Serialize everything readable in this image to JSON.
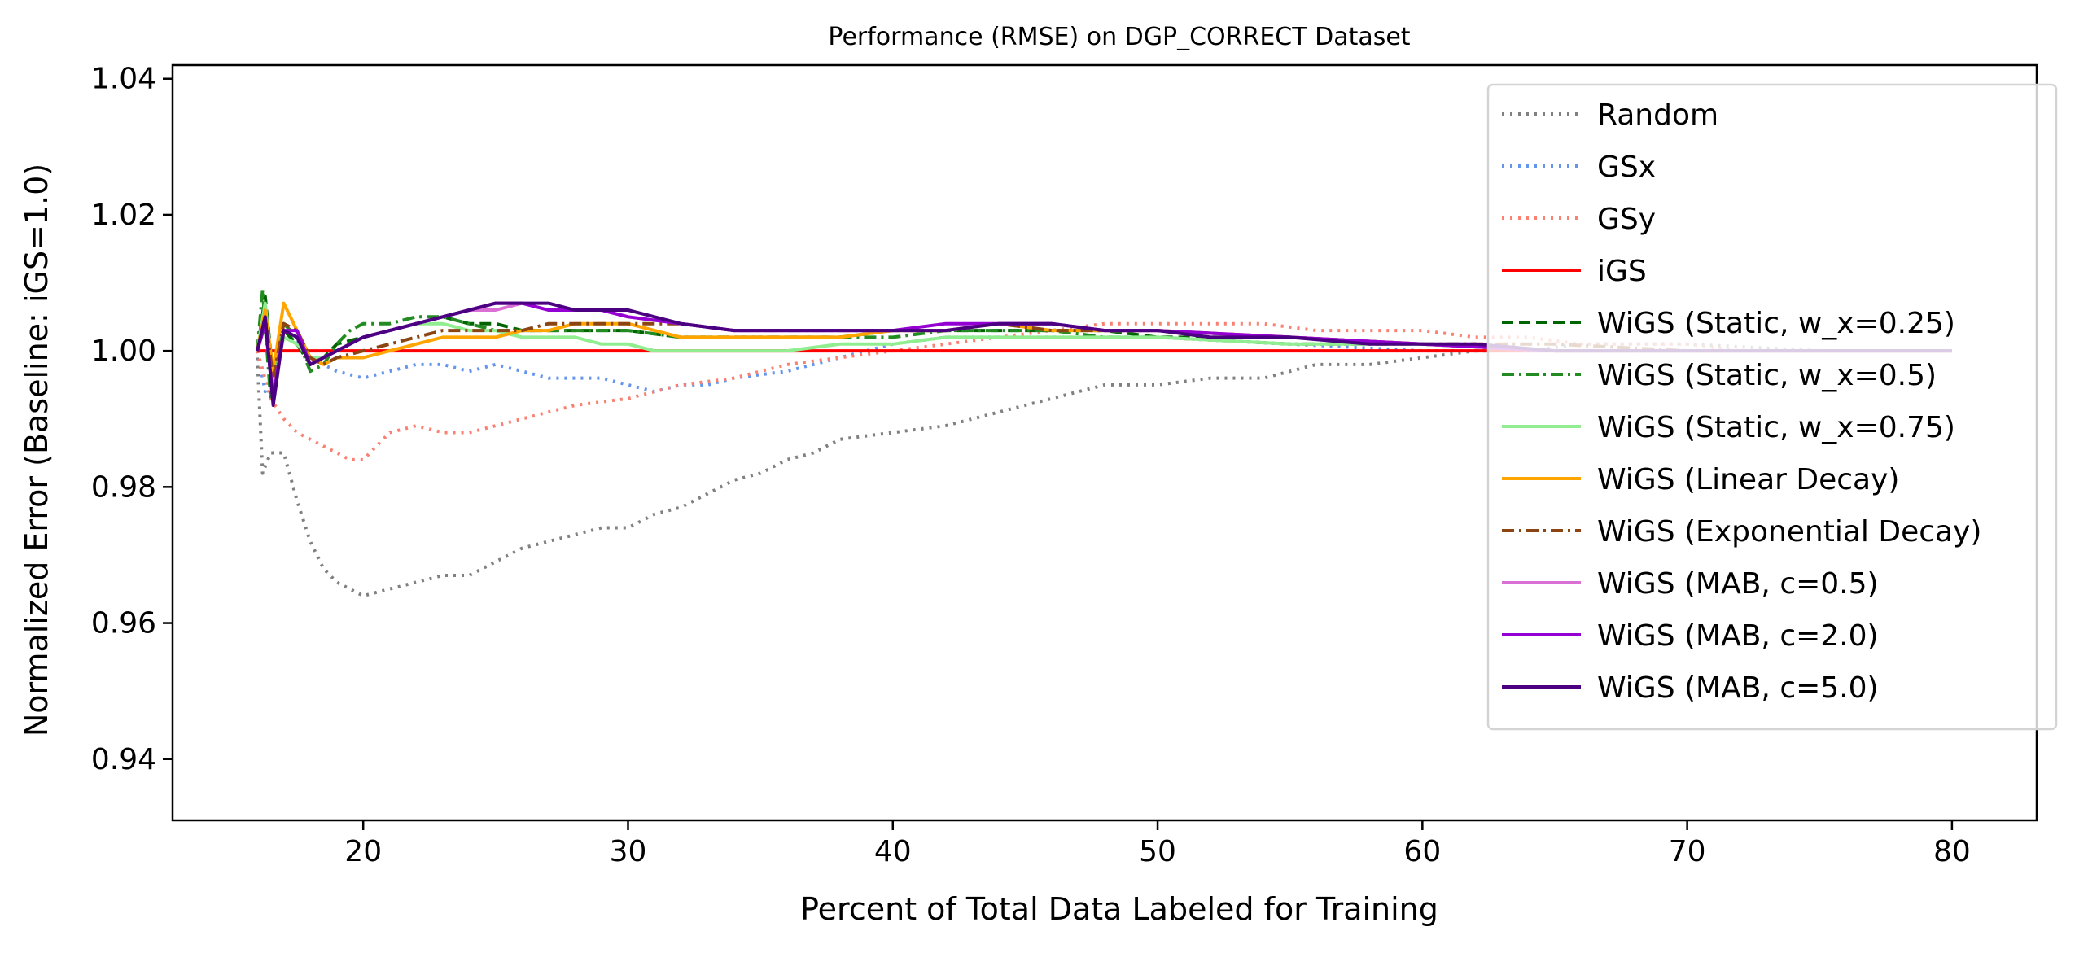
{
  "chart_data": {
    "type": "line",
    "title": "Performance (RMSE) on DGP_CORRECT Dataset",
    "xlabel": "Percent of Total Data Labeled for Training",
    "ylabel": "Normalized Error (Baseline: iGS=1.0)",
    "xlim": [
      12.8,
      83.2
    ],
    "ylim": [
      0.931,
      1.042
    ],
    "xticks": [
      20,
      30,
      40,
      50,
      60,
      70,
      80
    ],
    "xtick_labels": [
      "20",
      "30",
      "40",
      "50",
      "60",
      "70",
      "80"
    ],
    "yticks": [
      0.94,
      0.96,
      0.98,
      1.0,
      1.02,
      1.04
    ],
    "ytick_labels": [
      "0.94",
      "0.96",
      "0.98",
      "1.00",
      "1.02",
      "1.04"
    ],
    "grid": false,
    "legend_position": "top-right",
    "series": [
      {
        "name": "Random",
        "color": "#808080",
        "style": "dotted",
        "x": [
          16.0,
          16.2,
          16.5,
          17.0,
          17.5,
          18.0,
          18.5,
          19.0,
          20.0,
          21.0,
          22.0,
          23.0,
          24.0,
          25.0,
          26.0,
          27.0,
          28.0,
          29.0,
          30.0,
          31.0,
          32.0,
          33.0,
          34.0,
          35.0,
          36.0,
          37.0,
          38.0,
          40.0,
          42.0,
          44.0,
          46.0,
          48.0,
          50.0,
          52.0,
          54.0,
          56.0,
          58.0,
          60.0,
          62.0,
          64.0,
          66.0,
          70.0,
          75.0,
          80.0
        ],
        "y": [
          0.999,
          0.982,
          0.985,
          0.985,
          0.978,
          0.972,
          0.968,
          0.966,
          0.964,
          0.965,
          0.966,
          0.967,
          0.967,
          0.969,
          0.971,
          0.972,
          0.973,
          0.974,
          0.974,
          0.976,
          0.977,
          0.979,
          0.981,
          0.982,
          0.984,
          0.985,
          0.987,
          0.988,
          0.989,
          0.991,
          0.993,
          0.995,
          0.995,
          0.996,
          0.996,
          0.998,
          0.998,
          0.999,
          1.0,
          1.0,
          1.001,
          1.001,
          1.0,
          1.0
        ]
      },
      {
        "name": "GSx",
        "color": "#6495ED",
        "style": "dotted",
        "x": [
          16.0,
          16.3,
          17.0,
          18.0,
          19.0,
          20.0,
          21.0,
          22.0,
          23.0,
          24.0,
          25.0,
          26.0,
          27.0,
          28.0,
          29.0,
          30.0,
          31.0,
          32.0,
          33.0,
          34.0,
          36.0,
          38.0,
          40.0,
          42.0,
          44.0,
          46.0,
          48.0,
          50.0,
          55.0,
          60.0,
          65.0,
          70.0,
          75.0,
          80.0
        ],
        "y": [
          1.0,
          0.994,
          1.003,
          0.999,
          0.997,
          0.996,
          0.997,
          0.998,
          0.998,
          0.997,
          0.998,
          0.997,
          0.996,
          0.996,
          0.996,
          0.995,
          0.994,
          0.995,
          0.995,
          0.996,
          0.997,
          0.999,
          1.001,
          1.002,
          1.002,
          1.002,
          1.002,
          1.002,
          1.001,
          1.0,
          1.0,
          1.0,
          1.0,
          1.0
        ]
      },
      {
        "name": "GSy",
        "color": "#FA8072",
        "style": "dotted",
        "x": [
          16.0,
          16.5,
          17.0,
          17.5,
          18.0,
          18.5,
          19.0,
          19.5,
          20.0,
          21.0,
          22.0,
          23.0,
          24.0,
          25.0,
          26.0,
          28.0,
          30.0,
          32.0,
          34.0,
          36.0,
          38.0,
          40.0,
          42.0,
          44.0,
          46.0,
          48.0,
          50.0,
          52.0,
          54.0,
          56.0,
          58.0,
          60.0,
          62.0,
          64.0,
          66.0,
          68.0,
          70.0,
          72.0,
          74.0,
          76.0,
          78.0,
          80.0
        ],
        "y": [
          1.0,
          0.993,
          0.99,
          0.988,
          0.987,
          0.986,
          0.985,
          0.984,
          0.984,
          0.988,
          0.989,
          0.988,
          0.988,
          0.989,
          0.99,
          0.992,
          0.993,
          0.995,
          0.996,
          0.998,
          0.999,
          1.0,
          1.001,
          1.002,
          1.003,
          1.004,
          1.004,
          1.004,
          1.004,
          1.003,
          1.003,
          1.003,
          1.002,
          1.002,
          1.001,
          1.001,
          1.001,
          1.0,
          1.0,
          1.0,
          1.0,
          1.0
        ]
      },
      {
        "name": "iGS",
        "color": "#FF0000",
        "style": "solid",
        "x": [
          16.0,
          80.0
        ],
        "y": [
          1.0,
          1.0
        ]
      },
      {
        "name": "WiGS (Static, w_x=0.25)",
        "color": "#006400",
        "style": "dashed",
        "x": [
          16.0,
          16.3,
          16.6,
          17.0,
          17.5,
          18.0,
          18.5,
          19.0,
          20.0,
          21.0,
          22.0,
          23.0,
          24.0,
          25.0,
          26.0,
          27.0,
          28.0,
          30.0,
          32.0,
          34.0,
          36.0,
          38.0,
          40.0,
          42.0,
          44.0,
          46.0,
          48.0,
          50.0,
          55.0,
          60.0,
          65.0,
          70.0,
          75.0,
          80.0
        ],
        "y": [
          1.0,
          1.008,
          0.996,
          1.003,
          1.001,
          0.998,
          0.999,
          1.001,
          1.002,
          1.003,
          1.004,
          1.005,
          1.004,
          1.004,
          1.003,
          1.003,
          1.003,
          1.003,
          1.002,
          1.002,
          1.002,
          1.002,
          1.003,
          1.003,
          1.003,
          1.003,
          1.003,
          1.002,
          1.002,
          1.001,
          1.0,
          1.0,
          1.0,
          1.0
        ]
      },
      {
        "name": "WiGS (Static, w_x=0.5)",
        "color": "#228B22",
        "style": "dashdot",
        "x": [
          16.0,
          16.2,
          16.5,
          17.0,
          17.5,
          18.0,
          18.5,
          19.0,
          19.5,
          20.0,
          21.0,
          22.0,
          23.0,
          24.0,
          25.0,
          26.0,
          28.0,
          30.0,
          32.0,
          34.0,
          36.0,
          38.0,
          40.0,
          42.0,
          44.0,
          46.0,
          48.0,
          50.0,
          55.0,
          60.0,
          65.0,
          70.0,
          75.0,
          80.0
        ],
        "y": [
          1.0,
          1.009,
          0.993,
          1.004,
          1.002,
          0.997,
          0.998,
          1.001,
          1.003,
          1.004,
          1.004,
          1.005,
          1.005,
          1.004,
          1.003,
          1.003,
          1.003,
          1.003,
          1.002,
          1.002,
          1.002,
          1.002,
          1.002,
          1.003,
          1.003,
          1.003,
          1.002,
          1.002,
          1.001,
          1.001,
          1.0,
          1.0,
          1.0,
          1.0
        ]
      },
      {
        "name": "WiGS (Static, w_x=0.75)",
        "color": "#90EE90",
        "style": "solid",
        "x": [
          16.0,
          16.3,
          16.6,
          17.0,
          17.5,
          18.0,
          18.5,
          19.0,
          20.0,
          21.0,
          22.0,
          23.0,
          24.0,
          25.0,
          26.0,
          27.0,
          28.0,
          29.0,
          30.0,
          31.0,
          32.0,
          34.0,
          36.0,
          38.0,
          40.0,
          42.0,
          44.0,
          46.0,
          48.0,
          50.0,
          55.0,
          60.0,
          65.0,
          70.0,
          75.0,
          80.0
        ],
        "y": [
          1.0,
          1.007,
          0.995,
          1.002,
          1.001,
          0.999,
          0.999,
          1.0,
          1.002,
          1.003,
          1.004,
          1.004,
          1.003,
          1.003,
          1.002,
          1.002,
          1.002,
          1.001,
          1.001,
          1.0,
          1.0,
          1.0,
          1.0,
          1.001,
          1.001,
          1.002,
          1.002,
          1.002,
          1.002,
          1.002,
          1.001,
          1.001,
          1.0,
          1.0,
          1.0,
          1.0
        ]
      },
      {
        "name": "WiGS (Linear Decay)",
        "color": "#FFA500",
        "style": "solid",
        "x": [
          16.0,
          16.3,
          16.6,
          17.0,
          17.5,
          18.0,
          18.5,
          19.0,
          19.5,
          20.0,
          21.0,
          22.0,
          23.0,
          24.0,
          25.0,
          26.0,
          27.0,
          28.0,
          29.0,
          30.0,
          31.0,
          32.0,
          34.0,
          36.0,
          38.0,
          40.0,
          42.0,
          44.0,
          46.0,
          48.0,
          50.0,
          55.0,
          60.0,
          65.0,
          70.0,
          75.0,
          80.0
        ],
        "y": [
          1.0,
          1.006,
          0.997,
          1.007,
          1.003,
          0.999,
          0.998,
          0.999,
          0.999,
          0.999,
          1.0,
          1.001,
          1.002,
          1.002,
          1.002,
          1.003,
          1.003,
          1.004,
          1.004,
          1.004,
          1.003,
          1.002,
          1.002,
          1.002,
          1.002,
          1.003,
          1.003,
          1.004,
          1.003,
          1.003,
          1.003,
          1.002,
          1.001,
          1.0,
          1.0,
          1.0,
          1.0
        ]
      },
      {
        "name": "WiGS (Exponential Decay)",
        "color": "#8B4513",
        "style": "dashdot",
        "x": [
          16.0,
          16.3,
          16.6,
          17.0,
          17.5,
          18.0,
          18.5,
          19.0,
          20.0,
          21.0,
          22.0,
          23.0,
          24.0,
          25.0,
          26.0,
          27.0,
          28.0,
          29.0,
          30.0,
          32.0,
          34.0,
          36.0,
          38.0,
          40.0,
          42.0,
          44.0,
          46.0,
          48.0,
          50.0,
          55.0,
          60.0,
          65.0,
          70.0,
          75.0,
          80.0
        ],
        "y": [
          1.0,
          1.005,
          0.996,
          1.004,
          1.003,
          0.999,
          0.998,
          0.999,
          1.0,
          1.001,
          1.002,
          1.003,
          1.003,
          1.003,
          1.003,
          1.004,
          1.004,
          1.004,
          1.004,
          1.004,
          1.003,
          1.003,
          1.003,
          1.003,
          1.003,
          1.004,
          1.003,
          1.003,
          1.003,
          1.002,
          1.001,
          1.001,
          1.0,
          1.0,
          1.0
        ]
      },
      {
        "name": "WiGS (MAB, c=0.5)",
        "color": "#DA70D6",
        "style": "solid",
        "x": [
          16.0,
          16.3,
          16.6,
          17.0,
          17.5,
          18.0,
          18.5,
          19.0,
          20.0,
          21.0,
          22.0,
          23.0,
          24.0,
          25.0,
          26.0,
          27.0,
          28.0,
          29.0,
          30.0,
          32.0,
          34.0,
          36.0,
          38.0,
          40.0,
          42.0,
          44.0,
          46.0,
          48.0,
          50.0,
          55.0,
          60.0,
          65.0,
          70.0,
          75.0,
          80.0
        ],
        "y": [
          1.0,
          1.004,
          0.993,
          1.003,
          1.002,
          0.998,
          0.999,
          1.0,
          1.002,
          1.003,
          1.004,
          1.005,
          1.006,
          1.006,
          1.007,
          1.006,
          1.006,
          1.006,
          1.005,
          1.004,
          1.003,
          1.003,
          1.003,
          1.003,
          1.003,
          1.004,
          1.004,
          1.003,
          1.003,
          1.002,
          1.001,
          1.0,
          1.0,
          1.0,
          1.0
        ]
      },
      {
        "name": "WiGS (MAB, c=2.0)",
        "color": "#9400D3",
        "style": "solid",
        "x": [
          16.0,
          16.3,
          16.6,
          17.0,
          17.5,
          18.0,
          18.5,
          19.0,
          20.0,
          21.0,
          22.0,
          23.0,
          24.0,
          25.0,
          26.0,
          27.0,
          28.0,
          29.0,
          30.0,
          32.0,
          34.0,
          36.0,
          38.0,
          40.0,
          42.0,
          44.0,
          46.0,
          48.0,
          50.0,
          55.0,
          60.0,
          65.0,
          70.0,
          75.0,
          80.0
        ],
        "y": [
          1.0,
          1.004,
          0.993,
          1.003,
          1.003,
          0.998,
          0.999,
          1.0,
          1.002,
          1.003,
          1.004,
          1.005,
          1.006,
          1.007,
          1.007,
          1.006,
          1.006,
          1.006,
          1.005,
          1.004,
          1.003,
          1.003,
          1.003,
          1.003,
          1.004,
          1.004,
          1.004,
          1.003,
          1.003,
          1.002,
          1.001,
          1.0,
          1.0,
          1.0,
          1.0
        ]
      },
      {
        "name": "WiGS (MAB, c=5.0)",
        "color": "#4B0082",
        "style": "solid",
        "x": [
          16.0,
          16.3,
          16.6,
          17.0,
          17.5,
          18.0,
          18.5,
          19.0,
          20.0,
          21.0,
          22.0,
          23.0,
          24.0,
          25.0,
          26.0,
          27.0,
          28.0,
          29.0,
          30.0,
          31.0,
          32.0,
          34.0,
          36.0,
          38.0,
          40.0,
          42.0,
          44.0,
          46.0,
          48.0,
          50.0,
          52.0,
          55.0,
          58.0,
          60.0,
          62.0,
          65.0,
          70.0,
          75.0,
          80.0
        ],
        "y": [
          1.0,
          1.005,
          0.992,
          1.003,
          1.002,
          0.998,
          0.999,
          1.0,
          1.002,
          1.003,
          1.004,
          1.005,
          1.006,
          1.007,
          1.007,
          1.007,
          1.006,
          1.006,
          1.006,
          1.005,
          1.004,
          1.003,
          1.003,
          1.003,
          1.003,
          1.003,
          1.004,
          1.004,
          1.003,
          1.003,
          1.002,
          1.002,
          1.001,
          1.001,
          1.001,
          1.0,
          1.0,
          1.0,
          1.0
        ]
      }
    ]
  }
}
